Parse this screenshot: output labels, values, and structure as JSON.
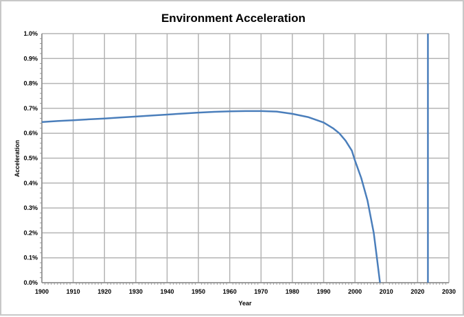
{
  "chart_data": {
    "type": "line",
    "title": "Environment Acceleration",
    "xlabel": "Year",
    "ylabel": "Acceleration",
    "xlim": [
      1900,
      2030
    ],
    "ylim": [
      0,
      1.0
    ],
    "x_ticks": [
      "1900",
      "1910",
      "1920",
      "1930",
      "1940",
      "1950",
      "1960",
      "1970",
      "1980",
      "1990",
      "2000",
      "2010",
      "2020",
      "2030"
    ],
    "y_ticks": [
      "0.0%",
      "0.1%",
      "0.2%",
      "0.3%",
      "0.4%",
      "0.5%",
      "0.6%",
      "0.7%",
      "0.8%",
      "0.9%",
      "1.0%"
    ],
    "grid": true,
    "legend": "none",
    "series": [
      {
        "name": "Acceleration",
        "color": "#4a7ebb",
        "x": [
          1900,
          1905,
          1910,
          1915,
          1920,
          1925,
          1930,
          1935,
          1940,
          1945,
          1950,
          1955,
          1960,
          1965,
          1970,
          1975,
          1980,
          1985,
          1990,
          1993,
          1995,
          1997,
          1999,
          2000,
          2002,
          2004,
          2006,
          2007,
          2008
        ],
        "y": [
          0.645,
          0.649,
          0.652,
          0.656,
          0.659,
          0.663,
          0.667,
          0.671,
          0.675,
          0.679,
          0.683,
          0.686,
          0.688,
          0.689,
          0.689,
          0.687,
          0.678,
          0.665,
          0.643,
          0.62,
          0.6,
          0.57,
          0.53,
          0.49,
          0.42,
          0.33,
          0.2,
          0.1,
          0.0
        ]
      }
    ],
    "vertical_line": {
      "x": 2023.3,
      "color": "#4a7ebb"
    }
  }
}
